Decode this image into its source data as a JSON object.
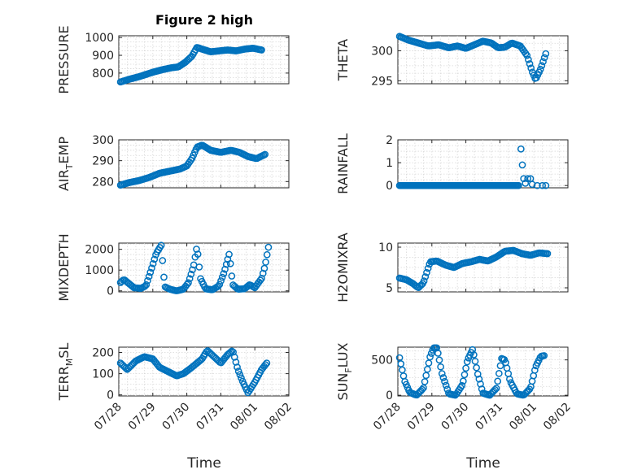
{
  "figure": {
    "title": "Figure 2 high",
    "xlabel": "Time"
  },
  "colors": {
    "marker": "#0072BD",
    "axis": "#262626",
    "grid": "#d8d8d8"
  },
  "chart_data": [
    {
      "type": "scatter",
      "title": "Figure 2 high",
      "ylabel": "PRESSURE",
      "ylim": [
        740,
        1010
      ],
      "yticks": [
        800,
        900,
        1000
      ],
      "xlim": [
        0,
        4.6
      ],
      "xticks": [],
      "grid": true,
      "marker": "circle",
      "anchors": [
        [
          0.05,
          750
        ],
        [
          0.3,
          765
        ],
        [
          0.6,
          780
        ],
        [
          1.0,
          805
        ],
        [
          1.3,
          820
        ],
        [
          1.55,
          830
        ],
        [
          1.75,
          835
        ],
        [
          1.95,
          860
        ],
        [
          2.15,
          895
        ],
        [
          2.3,
          945
        ],
        [
          2.45,
          935
        ],
        [
          2.7,
          920
        ],
        [
          2.95,
          925
        ],
        [
          3.2,
          930
        ],
        [
          3.45,
          925
        ],
        [
          3.7,
          935
        ],
        [
          3.95,
          940
        ],
        [
          4.2,
          930
        ]
      ]
    },
    {
      "type": "scatter",
      "ylabel": "THETA",
      "ylim": [
        294.5,
        302.5
      ],
      "yticks": [
        295,
        300
      ],
      "xlim": [
        0,
        4.6
      ],
      "xticks": [],
      "grid": true,
      "marker": "circle",
      "anchors": [
        [
          0.05,
          302.4
        ],
        [
          0.3,
          301.8
        ],
        [
          0.6,
          301.3
        ],
        [
          0.9,
          300.8
        ],
        [
          1.2,
          301.0
        ],
        [
          1.5,
          300.5
        ],
        [
          1.75,
          300.8
        ],
        [
          2.0,
          300.4
        ],
        [
          2.25,
          301.0
        ],
        [
          2.5,
          301.6
        ],
        [
          2.75,
          301.3
        ],
        [
          2.95,
          300.5
        ],
        [
          3.15,
          300.6
        ],
        [
          3.35,
          301.3
        ],
        [
          3.6,
          300.8
        ],
        [
          3.8,
          299.2
        ],
        [
          3.95,
          296.5
        ],
        [
          4.05,
          295.2
        ],
        [
          4.2,
          297.0
        ],
        [
          4.35,
          299.5
        ]
      ]
    },
    {
      "type": "scatter",
      "ylabel": "AIR_TEMP",
      "ylim": [
        277,
        300
      ],
      "yticks": [
        280,
        290,
        300
      ],
      "xlim": [
        0,
        4.6
      ],
      "xticks": [],
      "grid": true,
      "marker": "circle",
      "anchors": [
        [
          0.05,
          278.3
        ],
        [
          0.3,
          279.5
        ],
        [
          0.6,
          280.5
        ],
        [
          0.9,
          282.0
        ],
        [
          1.2,
          284.0
        ],
        [
          1.5,
          285.0
        ],
        [
          1.8,
          286.0
        ],
        [
          2.0,
          287.5
        ],
        [
          2.15,
          291.0
        ],
        [
          2.3,
          296.5
        ],
        [
          2.45,
          297.5
        ],
        [
          2.7,
          295.0
        ],
        [
          3.0,
          294.0
        ],
        [
          3.3,
          295.0
        ],
        [
          3.55,
          294.0
        ],
        [
          3.8,
          292.0
        ],
        [
          4.05,
          291.0
        ],
        [
          4.3,
          293.0
        ]
      ]
    },
    {
      "type": "scatter",
      "ylabel": "RAINFALL",
      "ylim": [
        -0.1,
        2
      ],
      "yticks": [
        0,
        1,
        2
      ],
      "xlim": [
        0,
        4.6
      ],
      "xticks": [],
      "grid": true,
      "marker": "circle",
      "anchors": [
        [
          0.05,
          0
        ],
        [
          3.55,
          0
        ]
      ],
      "extra_points": [
        [
          3.62,
          1.6
        ],
        [
          3.66,
          0.9
        ],
        [
          3.7,
          0.3
        ],
        [
          3.75,
          0.1
        ],
        [
          3.82,
          0.3
        ],
        [
          3.9,
          0.3
        ],
        [
          3.95,
          0.05
        ],
        [
          4.1,
          0.0
        ],
        [
          4.25,
          0.0
        ],
        [
          4.35,
          0.0
        ]
      ]
    },
    {
      "type": "scatter",
      "ylabel": "MIXDEPTH",
      "ylim": [
        -50,
        2300
      ],
      "yticks": [
        0,
        1000,
        2000
      ],
      "xlim": [
        0,
        4.6
      ],
      "xticks": [],
      "grid": true,
      "marker": "circle",
      "anchors": [
        [
          0.05,
          400
        ],
        [
          0.15,
          550
        ],
        [
          0.3,
          350
        ],
        [
          0.45,
          150
        ],
        [
          0.65,
          120
        ],
        [
          0.8,
          250
        ],
        [
          0.95,
          1000
        ],
        [
          1.1,
          1800
        ],
        [
          1.25,
          2200
        ],
        [
          1.35,
          200
        ],
        [
          1.5,
          80
        ],
        [
          1.7,
          0
        ],
        [
          1.9,
          80
        ],
        [
          2.05,
          400
        ],
        [
          2.2,
          1200
        ],
        [
          2.3,
          2150
        ],
        [
          2.4,
          600
        ],
        [
          2.55,
          100
        ],
        [
          2.75,
          50
        ],
        [
          2.95,
          250
        ],
        [
          3.1,
          900
        ],
        [
          3.25,
          1800
        ],
        [
          3.35,
          300
        ],
        [
          3.5,
          80
        ],
        [
          3.7,
          100
        ],
        [
          3.85,
          300
        ],
        [
          4.0,
          150
        ],
        [
          4.2,
          600
        ],
        [
          4.3,
          1200
        ],
        [
          4.4,
          2100
        ]
      ]
    },
    {
      "type": "scatter",
      "ylabel": "H2OMIXRA",
      "ylim": [
        4.5,
        10.5
      ],
      "yticks": [
        5,
        10
      ],
      "xlim": [
        0,
        4.6
      ],
      "xticks": [],
      "grid": true,
      "marker": "circle",
      "anchors": [
        [
          0.05,
          6.2
        ],
        [
          0.25,
          6.0
        ],
        [
          0.45,
          5.5
        ],
        [
          0.6,
          5.0
        ],
        [
          0.75,
          5.6
        ],
        [
          0.95,
          8.2
        ],
        [
          1.15,
          8.3
        ],
        [
          1.4,
          7.8
        ],
        [
          1.65,
          7.5
        ],
        [
          1.9,
          8.0
        ],
        [
          2.15,
          8.2
        ],
        [
          2.4,
          8.5
        ],
        [
          2.65,
          8.3
        ],
        [
          2.9,
          8.8
        ],
        [
          3.15,
          9.5
        ],
        [
          3.4,
          9.6
        ],
        [
          3.65,
          9.2
        ],
        [
          3.9,
          9.0
        ],
        [
          4.15,
          9.3
        ],
        [
          4.4,
          9.2
        ]
      ]
    },
    {
      "type": "scatter",
      "ylabel": "TERR_MSL",
      "ylim": [
        -5,
        225
      ],
      "yticks": [
        0,
        100,
        200
      ],
      "xlim": [
        0,
        4.6
      ],
      "xticks": [
        "07/28",
        "07/29",
        "07/30",
        "07/31",
        "08/01",
        "08/02"
      ],
      "xtick_values": [
        0,
        1,
        2,
        3,
        4,
        5
      ],
      "grid": true,
      "marker": "circle",
      "anchors": [
        [
          0.05,
          150
        ],
        [
          0.25,
          120
        ],
        [
          0.5,
          160
        ],
        [
          0.75,
          180
        ],
        [
          1.0,
          170
        ],
        [
          1.2,
          130
        ],
        [
          1.45,
          110
        ],
        [
          1.7,
          90
        ],
        [
          1.9,
          100
        ],
        [
          2.15,
          130
        ],
        [
          2.45,
          170
        ],
        [
          2.6,
          210
        ],
        [
          2.8,
          180
        ],
        [
          3.0,
          150
        ],
        [
          3.2,
          190
        ],
        [
          3.35,
          210
        ],
        [
          3.5,
          120
        ],
        [
          3.65,
          60
        ],
        [
          3.8,
          10
        ],
        [
          4.0,
          60
        ],
        [
          4.2,
          120
        ],
        [
          4.35,
          150
        ]
      ]
    },
    {
      "type": "scatter",
      "ylabel": "SUN_FLUX",
      "ylim": [
        -10,
        680
      ],
      "yticks": [
        0,
        500
      ],
      "xlim": [
        0,
        4.6
      ],
      "xticks": [
        "07/28",
        "07/29",
        "07/30",
        "07/31",
        "08/01",
        "08/02"
      ],
      "xtick_values": [
        0,
        1,
        2,
        3,
        4,
        5
      ],
      "grid": true,
      "marker": "circle",
      "anchors": [
        [
          0.05,
          530
        ],
        [
          0.2,
          200
        ],
        [
          0.35,
          40
        ],
        [
          0.55,
          0
        ],
        [
          0.75,
          100
        ],
        [
          0.95,
          550
        ],
        [
          1.05,
          670
        ],
        [
          1.15,
          670
        ],
        [
          1.3,
          300
        ],
        [
          1.5,
          20
        ],
        [
          1.7,
          0
        ],
        [
          1.9,
          150
        ],
        [
          2.05,
          500
        ],
        [
          2.2,
          650
        ],
        [
          2.35,
          300
        ],
        [
          2.5,
          30
        ],
        [
          2.7,
          0
        ],
        [
          2.9,
          100
        ],
        [
          3.05,
          520
        ],
        [
          3.15,
          500
        ],
        [
          3.3,
          200
        ],
        [
          3.5,
          20
        ],
        [
          3.7,
          0
        ],
        [
          3.9,
          100
        ],
        [
          4.05,
          400
        ],
        [
          4.2,
          550
        ],
        [
          4.3,
          560
        ]
      ]
    }
  ]
}
